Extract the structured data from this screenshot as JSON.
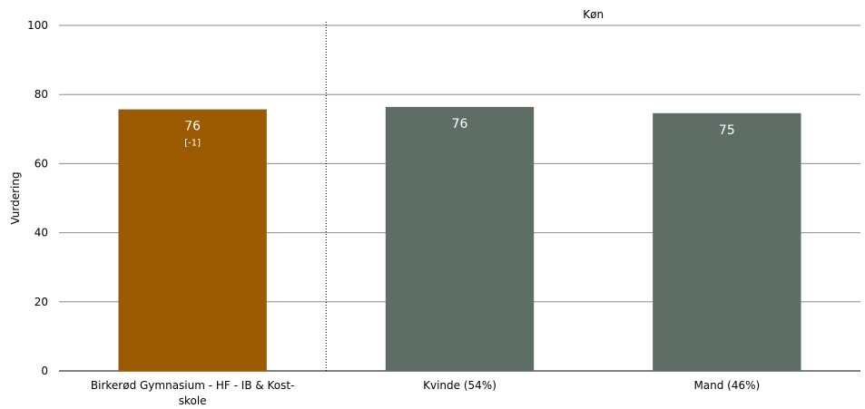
{
  "chart_data": {
    "type": "bar",
    "ylabel": "Vurdering",
    "ylim": [
      0,
      100
    ],
    "yticks": [
      0,
      20,
      40,
      60,
      80,
      100
    ],
    "grid": true,
    "group_label": "Køn",
    "categories": [
      "Birkerød Gymnasium - HF - IB & Kost-skole",
      "Kvinde (54%)",
      "Mand (46%)"
    ],
    "values": [
      75.7,
      76.4,
      74.6
    ],
    "value_labels": [
      "76",
      "76",
      "75"
    ],
    "sub_labels": [
      "[-1]",
      "",
      ""
    ],
    "colors": [
      "#9b5a00",
      "#5e6d65",
      "#5e6d65"
    ]
  },
  "category_lines": [
    [
      "Birkerød Gymnasium - HF - IB & Kost-",
      "skole"
    ],
    [
      "Kvinde (54%)"
    ],
    [
      "Mand (46%)"
    ]
  ]
}
